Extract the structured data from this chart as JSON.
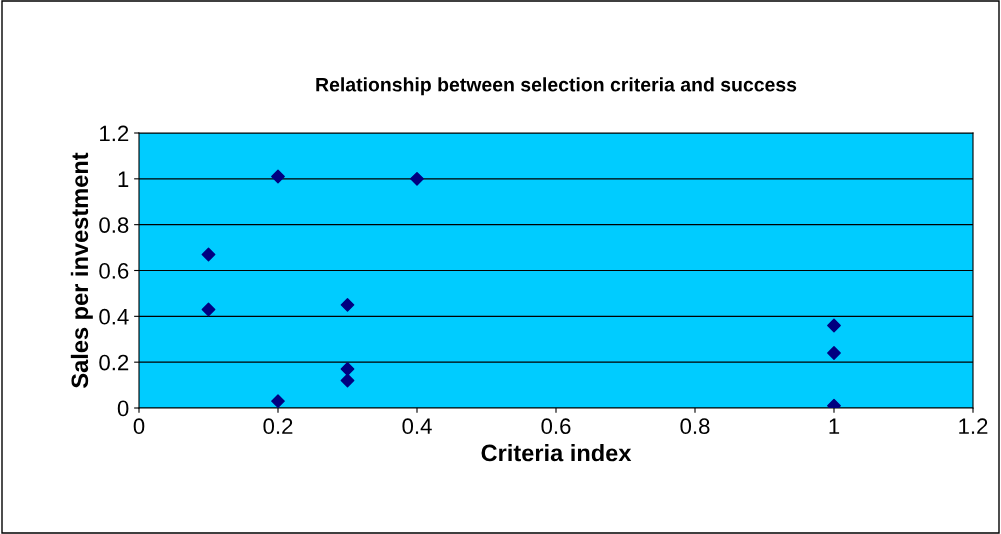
{
  "chart_data": {
    "type": "scatter",
    "title": "Relationship between selection criteria and success",
    "xlabel": "Criteria index",
    "ylabel": "Sales per investment",
    "x": [
      0.1,
      0.1,
      0.2,
      0.2,
      0.3,
      0.3,
      0.3,
      0.4,
      1.0,
      1.0,
      1.0
    ],
    "series": [
      {
        "color": "#000080",
        "values": [
          0.67,
          0.43,
          1.01,
          0.03,
          0.45,
          0.17,
          0.12,
          1.0,
          0.36,
          0.24,
          0.01
        ]
      }
    ],
    "xlim": [
      0,
      1.2
    ],
    "xticks": [
      0,
      0.2,
      0.4,
      0.6,
      0.8,
      1,
      1.2
    ],
    "ylim": [
      0,
      1.2
    ],
    "yticks": [
      0,
      0.2,
      0.4,
      0.6,
      0.8,
      1,
      1.2
    ],
    "grid": "y",
    "marker": "diamond",
    "legend": false
  }
}
